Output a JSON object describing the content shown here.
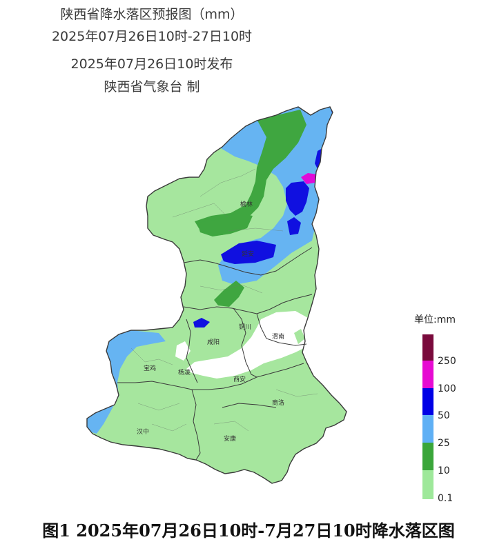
{
  "header": {
    "title": "陕西省降水落区预报图（mm）",
    "period": "2025年07月26日10时-27日10时",
    "issued": "2025年07月26日10时发布",
    "producer": "陕西省气象台 制"
  },
  "legend": {
    "title": "单位:mm",
    "levels": [
      {
        "label": "",
        "color": "#7a0a3c"
      },
      {
        "label": "250",
        "color": "#e60ad2"
      },
      {
        "label": "100",
        "color": "#0000e6"
      },
      {
        "label": "50",
        "color": "#5fb0f5"
      },
      {
        "label": "25",
        "color": "#3aa63a"
      },
      {
        "label": "10",
        "color": "#9ee89a"
      },
      {
        "label": "0.1",
        "color": ""
      }
    ]
  },
  "cities": {
    "yulin": "榆林",
    "yanan": "延安",
    "tongchuan": "铜川",
    "weinan": "渭南",
    "xianyang": "咸阳",
    "baoji": "宝鸡",
    "yangling": "杨凌",
    "xian": "西安",
    "shangluo": "商洛",
    "hanzhong": "汉中",
    "ankang": "安康"
  },
  "caption": "图1 2025年07月26日10时-7月27日10时降水落区图"
}
